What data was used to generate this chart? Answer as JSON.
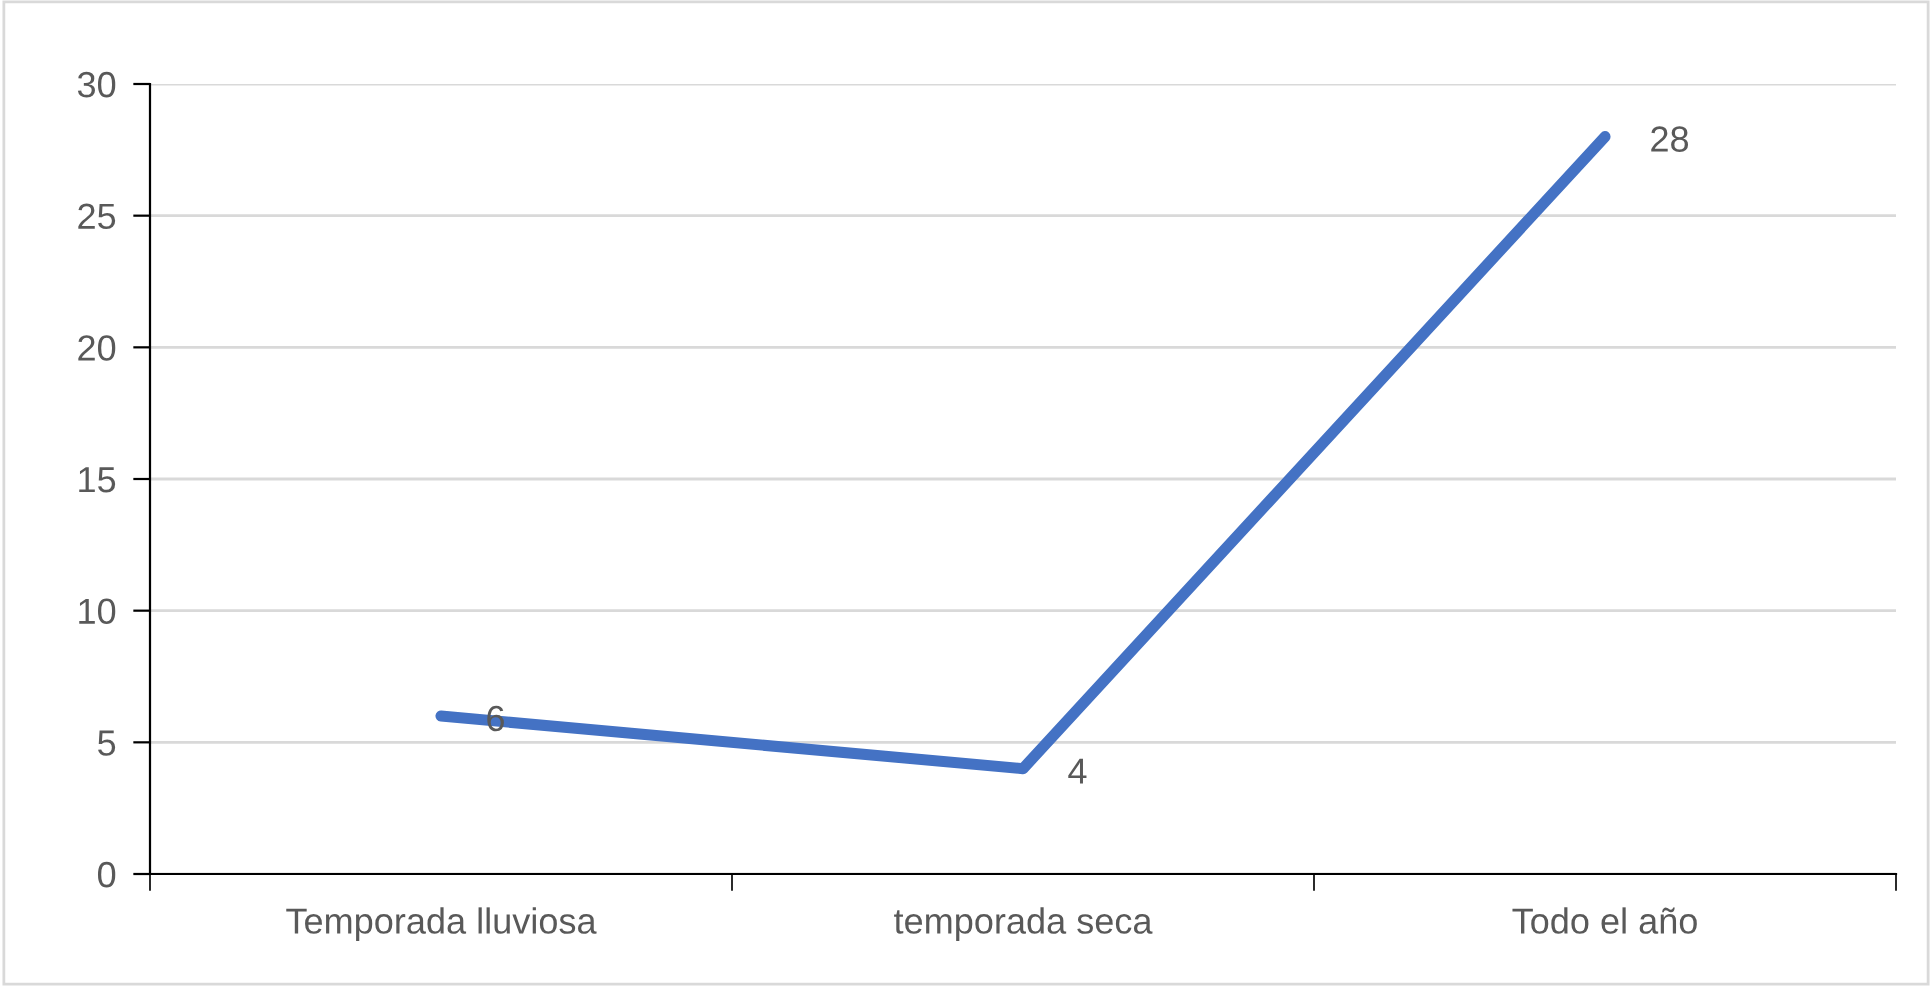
{
  "chart_data": {
    "type": "line",
    "categories": [
      "Temporada lluviosa",
      "temporada seca",
      "Todo el año"
    ],
    "series": [
      {
        "color": "#4472c4",
        "values": [
          6,
          4,
          28
        ]
      }
    ],
    "ylim": [
      0,
      30
    ],
    "yticks": [
      0,
      5,
      10,
      15,
      20,
      25,
      30
    ],
    "grid": "y",
    "data_labels": true,
    "marker": "none",
    "line_style": "solid"
  }
}
